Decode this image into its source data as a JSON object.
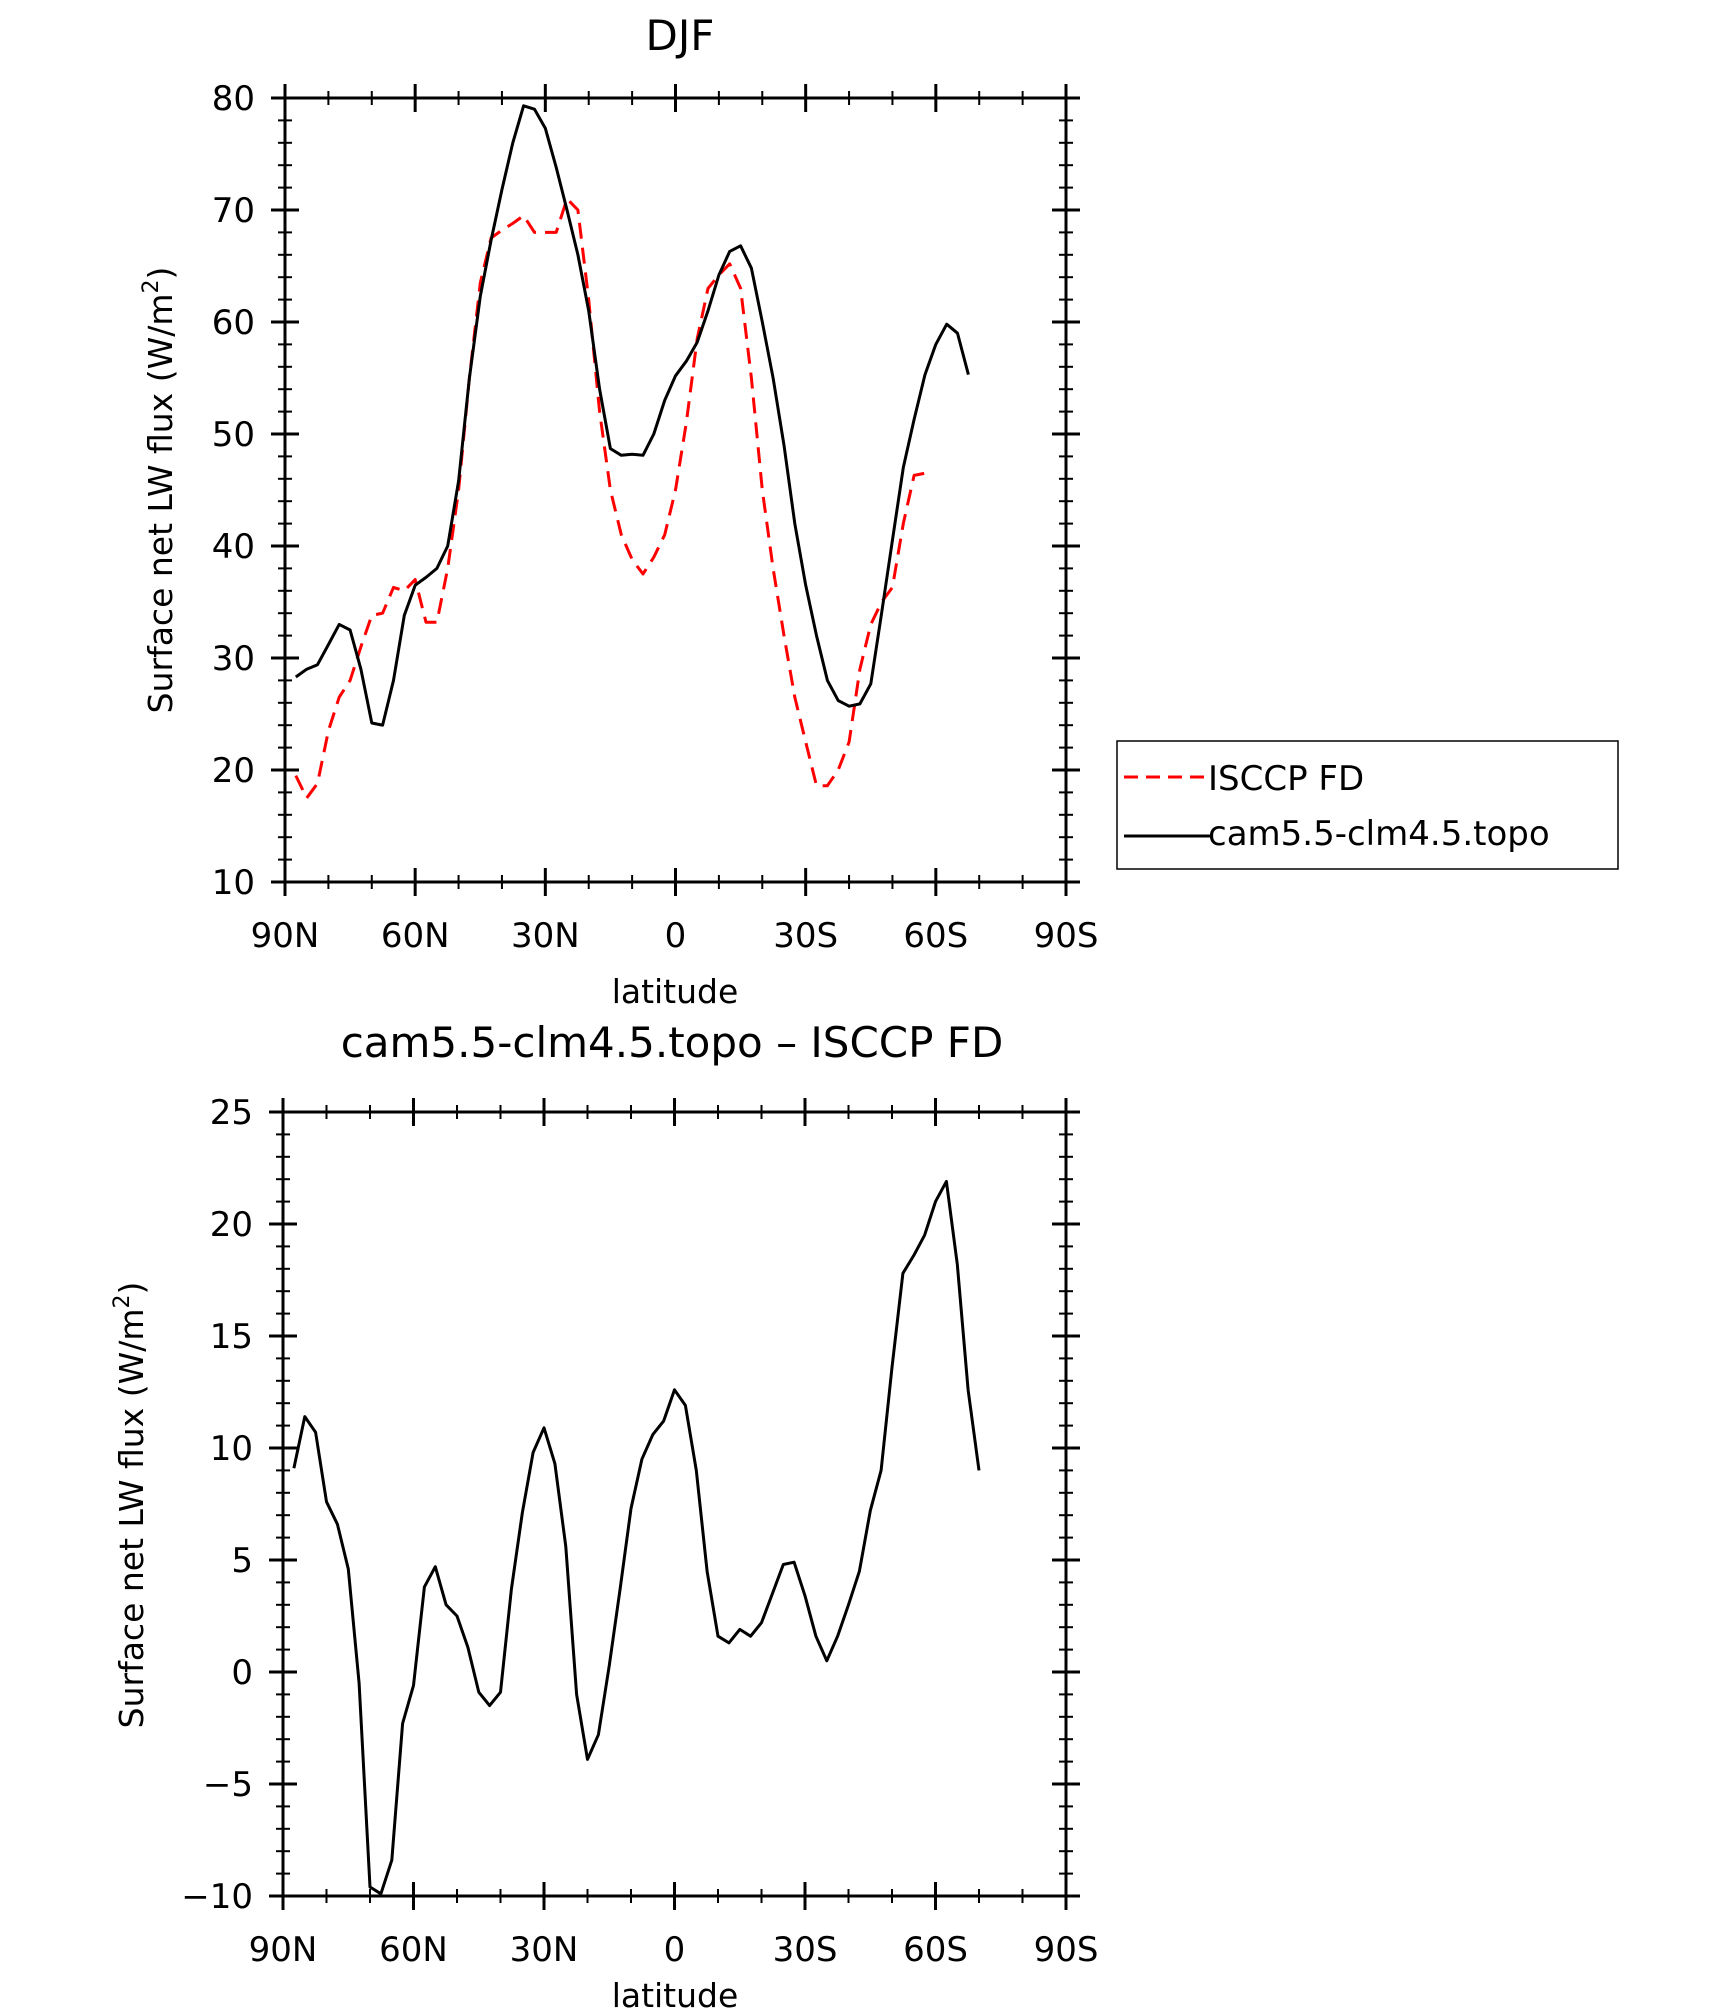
{
  "chart_data": [
    {
      "type": "line",
      "title": "DJF",
      "xlabel": "latitude",
      "ylabel": "Surface net LW flux (W/m",
      "ylabel_sup": "2",
      "ylabel_end": ")",
      "xlim": [
        90,
        -90
      ],
      "ylim": [
        10,
        80
      ],
      "x_ticks": [
        90,
        60,
        30,
        0,
        -30,
        -60,
        -90
      ],
      "x_tick_labels": [
        "90N",
        "60N",
        "30N",
        "0",
        "30S",
        "60S",
        "90S"
      ],
      "y_ticks": [
        10,
        20,
        30,
        40,
        50,
        60,
        70,
        80
      ],
      "y_tick_labels": [
        "10",
        "20",
        "30",
        "40",
        "50",
        "60",
        "70",
        "80"
      ],
      "legend_position": "right",
      "series": [
        {
          "name": "ISCCP FD",
          "color": "#ff0000",
          "dash": "dashed",
          "x": [
            87.5,
            85,
            82.5,
            80,
            77.5,
            75,
            72.5,
            70,
            67.5,
            65,
            62.5,
            60,
            57.5,
            55,
            52.5,
            50,
            47.5,
            45,
            42.5,
            40,
            37.5,
            35,
            32.5,
            30,
            27.5,
            25,
            22.5,
            20,
            17.5,
            15,
            12.5,
            10,
            7.5,
            5,
            2.5,
            0,
            -2.5,
            -5,
            -7.5,
            -10,
            -12.5,
            -15,
            -17.5,
            -20,
            -22.5,
            -25,
            -27.5,
            -30,
            -32.5,
            -35,
            -37.5,
            -40,
            -42.5,
            -45,
            -47.5,
            -50,
            -52.5,
            -55,
            -57.5,
            -60,
            -62.5,
            -65,
            -67.5,
            -70,
            -72.5,
            -75,
            -77.5,
            -80,
            -82.5,
            -85,
            -87.5
          ],
          "y": [
            19.5,
            17.5,
            18.8,
            23.5,
            26.5,
            28,
            31,
            33.8,
            34,
            36.3,
            36,
            37,
            33.2,
            33.2,
            38,
            45,
            55,
            63.5,
            67.5,
            68.2,
            68.8,
            69.5,
            68,
            68,
            68,
            71,
            70,
            62,
            52,
            45,
            41,
            38.8,
            37.5,
            39,
            41,
            45,
            51,
            58.5,
            63,
            64.2,
            65.2,
            63,
            55,
            45,
            38,
            32,
            26.5,
            22.5,
            18.6,
            18.6,
            20,
            22.5,
            29,
            33,
            35,
            36.3,
            42,
            46.3,
            46.5,
            null,
            null,
            null,
            null,
            null,
            null,
            null,
            null,
            null,
            null,
            null,
            null
          ]
        },
        {
          "name": "cam5.5-clm4.5.topo",
          "color": "#000000",
          "dash": "solid",
          "x": [
            87.5,
            85,
            82.5,
            80,
            77.5,
            75,
            72.5,
            70,
            67.5,
            65,
            62.5,
            60,
            57.5,
            55,
            52.5,
            50,
            47.5,
            45,
            42.5,
            40,
            37.5,
            35,
            32.5,
            30,
            27.5,
            25,
            22.5,
            20,
            17.5,
            15,
            12.5,
            10,
            7.5,
            5,
            2.5,
            0,
            -2.5,
            -5,
            -7.5,
            -10,
            -12.5,
            -15,
            -17.5,
            -20,
            -22.5,
            -25,
            -27.5,
            -30,
            -32.5,
            -35,
            -37.5,
            -40,
            -42.5,
            -45,
            -47.5,
            -50,
            -52.5,
            -55,
            -57.5,
            -60,
            -62.5,
            -65,
            -67.5,
            -70,
            -72.5,
            -75,
            -77.5,
            -80,
            -82.5,
            -85,
            -87.5
          ],
          "y": [
            28.3,
            29,
            29.4,
            31.2,
            33,
            32.5,
            29,
            24.2,
            24,
            28,
            33.8,
            36.5,
            37.2,
            38,
            40,
            45.8,
            55,
            62.3,
            67.3,
            71.8,
            76,
            79.3,
            79,
            77.3,
            73.8,
            70,
            66,
            61,
            54,
            48.7,
            48.1,
            48.2,
            48.1,
            50,
            53,
            55.2,
            56.5,
            58.2,
            61,
            64.2,
            66.3,
            66.8,
            64.8,
            60,
            55,
            49,
            42,
            36.5,
            32,
            28,
            26.2,
            25.7,
            25.9,
            27.7,
            34,
            40.5,
            47,
            51.3,
            55.3,
            58,
            59.8,
            59,
            55.3,
            null,
            null,
            null,
            null,
            null,
            null,
            null,
            null
          ]
        }
      ]
    },
    {
      "type": "line",
      "title": "cam5.5-clm4.5.topo – ISCCP FD",
      "xlabel": "latitude",
      "ylabel": "Surface net LW flux (W/m",
      "ylabel_sup": "2",
      "ylabel_end": ")",
      "xlim": [
        90,
        -90
      ],
      "ylim": [
        -10,
        25
      ],
      "x_ticks": [
        90,
        60,
        30,
        0,
        -30,
        -60,
        -90
      ],
      "x_tick_labels": [
        "90N",
        "60N",
        "30N",
        "0",
        "30S",
        "60S",
        "90S"
      ],
      "y_ticks": [
        -10,
        -5,
        0,
        5,
        10,
        15,
        20,
        25
      ],
      "y_tick_labels": [
        "−10",
        "−5",
        "0",
        "5",
        "10",
        "15",
        "20",
        "25"
      ],
      "series": [
        {
          "color": "#000000",
          "dash": "solid",
          "x": [
            87.5,
            85,
            82.5,
            80,
            77.5,
            75,
            72.5,
            70,
            67.5,
            65,
            62.5,
            60,
            57.5,
            55,
            52.5,
            50,
            47.5,
            45,
            42.5,
            40,
            37.5,
            35,
            32.5,
            30,
            27.5,
            25,
            22.5,
            20,
            17.5,
            15,
            12.5,
            10,
            7.5,
            5,
            2.5,
            0,
            -2.5,
            -5,
            -7.5,
            -10,
            -12.5,
            -15,
            -17.5,
            -20,
            -22.5,
            -25,
            -27.5,
            -30,
            -32.5,
            -35,
            -37.5,
            -40,
            -42.5,
            -45,
            -47.5,
            -50,
            -52.5,
            -55,
            -57.5,
            -60,
            -62.5,
            -65,
            -67.5,
            -70,
            -72.5,
            -75,
            -77.5,
            -80,
            -82.5,
            -85,
            -87.5
          ],
          "y": [
            9.1,
            11.4,
            10.7,
            7.6,
            6.6,
            4.6,
            -0.5,
            -9.6,
            -9.9,
            -8.4,
            -2.3,
            -0.6,
            3.8,
            4.7,
            3,
            2.5,
            1.1,
            -0.9,
            -1.5,
            -0.9,
            3.7,
            7.1,
            9.8,
            10.9,
            9.3,
            5.6,
            -1,
            -3.9,
            -2.8,
            0.3,
            3.7,
            7.3,
            9.5,
            10.6,
            11.2,
            12.6,
            11.9,
            9,
            4.5,
            1.6,
            1.3,
            1.9,
            1.6,
            2.2,
            3.5,
            4.8,
            4.9,
            3.4,
            1.6,
            0.5,
            1.6,
            3,
            4.5,
            7.2,
            9,
            13.6,
            17.8,
            18.6,
            19.5,
            21,
            21.9,
            18.2,
            12.6,
            9,
            null,
            null,
            null,
            null,
            null,
            null,
            null
          ]
        }
      ]
    }
  ]
}
